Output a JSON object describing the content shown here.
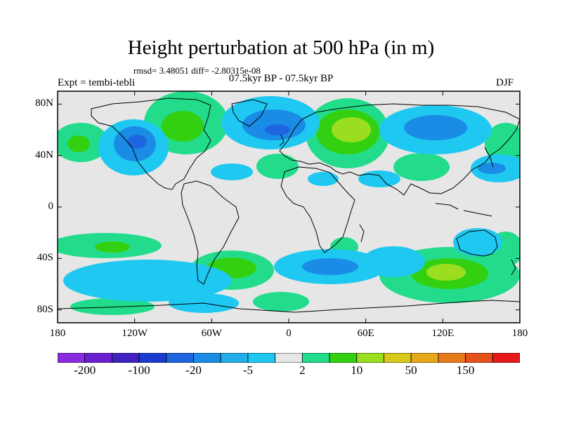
{
  "header": {
    "title": "Height perturbation at 500 hPa (in m)",
    "stats": "rmsd= 3.48051 diff= -2.80315e-08",
    "left_label": "Expt = tembi-tebli",
    "center_label": "07.5kyr BP - 07.5kyr BP",
    "right_label": "DJF"
  },
  "map": {
    "projection": "cylindrical equidistant",
    "lon_range": [
      -180,
      180
    ],
    "lat_range": [
      -90,
      90
    ],
    "background_color": "#e6e6e6",
    "coastline_color": "#000000",
    "y_ticks": [
      {
        "value": 80,
        "label": "80N"
      },
      {
        "value": 40,
        "label": "40N"
      },
      {
        "value": 0,
        "label": "0"
      },
      {
        "value": -40,
        "label": "40S"
      },
      {
        "value": -80,
        "label": "80S"
      }
    ],
    "x_ticks": [
      {
        "value": -180,
        "label": "180"
      },
      {
        "value": -120,
        "label": "120W"
      },
      {
        "value": -60,
        "label": "60W"
      },
      {
        "value": 0,
        "label": "0"
      },
      {
        "value": 60,
        "label": "60E"
      },
      {
        "value": 120,
        "label": "120E"
      },
      {
        "value": 180,
        "label": "180"
      }
    ]
  },
  "colorbar": {
    "colors": [
      "#8a2be2",
      "#6a1fd0",
      "#4020c0",
      "#1a3cd0",
      "#1e66e0",
      "#1a8ce6",
      "#22aeea",
      "#1ec8f0",
      "#e6e6e6",
      "#22dc8c",
      "#33d011",
      "#9ade1f",
      "#d8c81a",
      "#e6a81a",
      "#e67a1a",
      "#e6501a",
      "#e61a1a"
    ],
    "labels": [
      "-200",
      "-100",
      "-20",
      "-5",
      "2",
      "10",
      "50",
      "150"
    ]
  }
}
